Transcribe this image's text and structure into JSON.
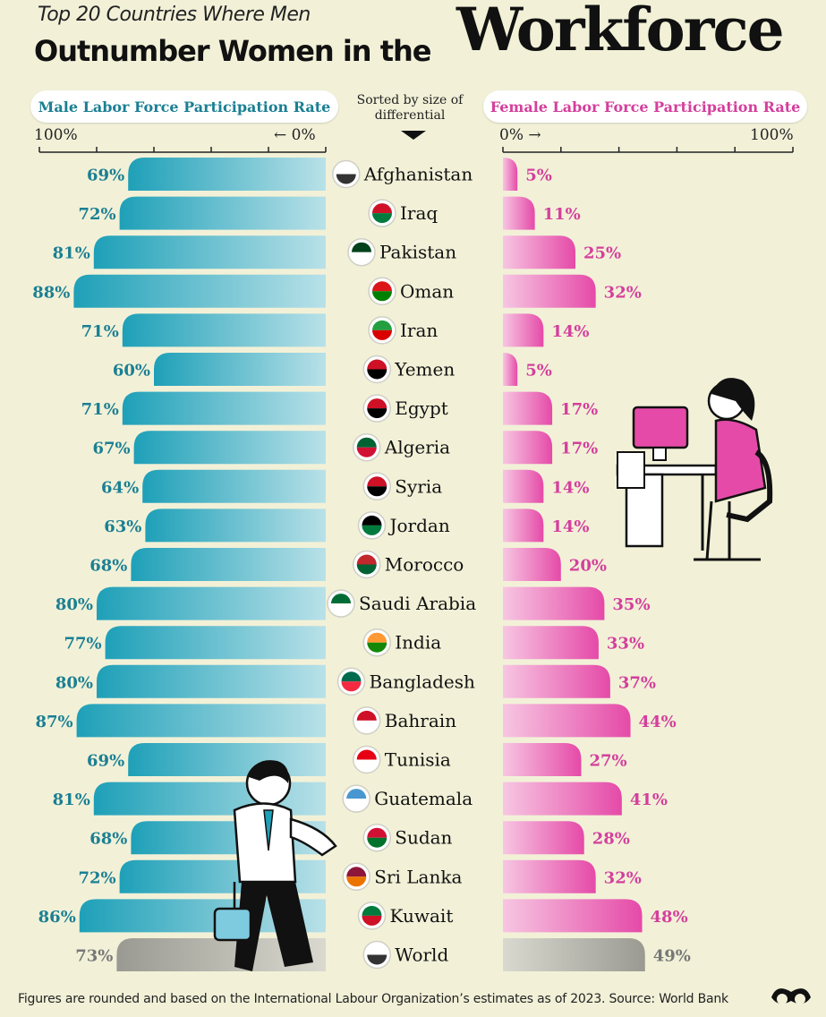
{
  "header": {
    "subtitle": "Top 20 Countries Where Men",
    "title_main": "Outnumber Women in the",
    "title_big": "Workforce",
    "left_pill": "Male Labor Force Participation Rate",
    "right_pill": "Female Labor Force Participation Rate",
    "sorted_note_line1": "Sorted by size of",
    "sorted_note_line2": "differential"
  },
  "axis": {
    "left_max": "100%",
    "left_zero": "← 0%",
    "right_zero": "0% →",
    "right_max": "100%"
  },
  "colors": {
    "male": "#1ea0b8",
    "male_light": "#b9e1e8",
    "female": "#e54aa8",
    "female_light": "#f7c6e2",
    "world": "#9a9a92",
    "world_light": "#d9d9cf",
    "male_text": "#1b7f93",
    "female_text": "#d43f9c",
    "world_text": "#777777"
  },
  "footer": "Figures are rounded and based on the International Labour Organization’s estimates as of 2023. Source: World Bank",
  "chart_data": {
    "type": "bar",
    "categories": [
      "Afghanistan",
      "Iraq",
      "Pakistan",
      "Oman",
      "Iran",
      "Yemen",
      "Egypt",
      "Algeria",
      "Syria",
      "Jordan",
      "Morocco",
      "Saudi Arabia",
      "India",
      "Bangladesh",
      "Bahrain",
      "Tunisia",
      "Guatemala",
      "Sudan",
      "Sri Lanka",
      "Kuwait",
      "World"
    ],
    "series": [
      {
        "name": "Male Labor Force Participation Rate",
        "values": [
          69,
          72,
          81,
          88,
          71,
          60,
          71,
          67,
          64,
          63,
          68,
          80,
          77,
          80,
          87,
          69,
          81,
          68,
          72,
          86,
          73
        ]
      },
      {
        "name": "Female Labor Force Participation Rate",
        "values": [
          5,
          11,
          25,
          32,
          14,
          5,
          17,
          17,
          14,
          14,
          20,
          35,
          33,
          37,
          44,
          27,
          41,
          28,
          32,
          48,
          49
        ]
      }
    ],
    "labels_male": [
      "69%",
      "72%",
      "81%",
      "88%",
      "71%",
      "60%",
      "71%",
      "67%",
      "64%",
      "63%",
      "68%",
      "80%",
      "77%",
      "80%",
      "87%",
      "69%",
      "81%",
      "68%",
      "72%",
      "86%",
      "73%"
    ],
    "labels_female": [
      "5%",
      "11%",
      "25%",
      "32%",
      "14%",
      "5%",
      "17%",
      "17%",
      "14%",
      "14%",
      "20%",
      "35%",
      "33%",
      "37%",
      "44%",
      "27%",
      "41%",
      "28%",
      "32%",
      "48%",
      "49%"
    ],
    "flag_colors": [
      [
        "#ffffff",
        "#333333"
      ],
      [
        "#ce1126",
        "#007a3d"
      ],
      [
        "#01411c",
        "#ffffff"
      ],
      [
        "#db161b",
        "#008000"
      ],
      [
        "#239f40",
        "#da0000"
      ],
      [
        "#ce1126",
        "#000000"
      ],
      [
        "#ce1126",
        "#000000"
      ],
      [
        "#006233",
        "#d21034"
      ],
      [
        "#ce1126",
        "#000000"
      ],
      [
        "#000000",
        "#007a3d"
      ],
      [
        "#c1272d",
        "#006233"
      ],
      [
        "#006c35",
        "#ffffff"
      ],
      [
        "#ff9933",
        "#138808"
      ],
      [
        "#006a4e",
        "#f42a41"
      ],
      [
        "#ce1126",
        "#ffffff"
      ],
      [
        "#e70013",
        "#ffffff"
      ],
      [
        "#4997d0",
        "#ffffff"
      ],
      [
        "#d21034",
        "#007229"
      ],
      [
        "#8d153a",
        "#eb7400"
      ],
      [
        "#007a3d",
        "#ce1126"
      ],
      [
        "#ffffff",
        "#333333"
      ]
    ],
    "xlim": [
      0,
      100
    ]
  }
}
